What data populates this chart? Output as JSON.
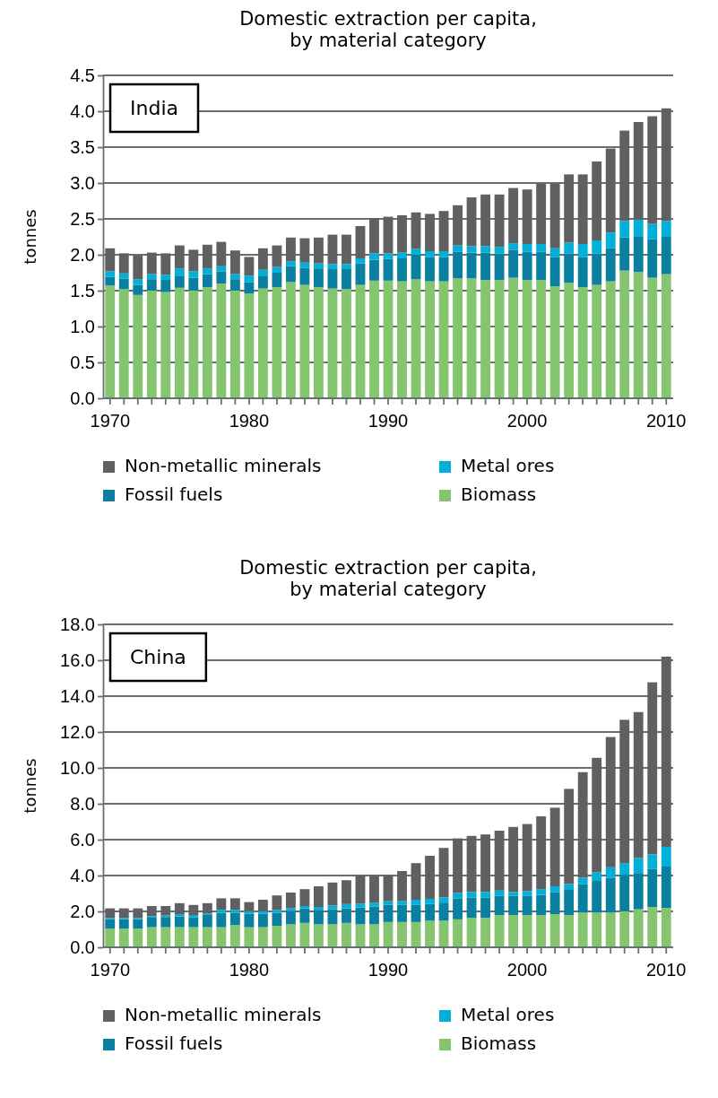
{
  "chart_data": [
    {
      "type": "bar",
      "stacked": true,
      "title": "Domestic extraction  per capita,\nby material category",
      "ylabel": "tonnes",
      "annotations": [
        "India"
      ],
      "grid": "y",
      "legend": "bottom",
      "categories": [
        "1970",
        null,
        null,
        null,
        null,
        null,
        null,
        null,
        null,
        null,
        "1980",
        null,
        null,
        null,
        null,
        null,
        null,
        null,
        null,
        null,
        "1990",
        null,
        null,
        null,
        null,
        null,
        null,
        null,
        null,
        null,
        "2000",
        null,
        null,
        null,
        null,
        null,
        null,
        null,
        null,
        null,
        "2010"
      ],
      "ylim": [
        0,
        4.5
      ],
      "yticks": [
        {
          "value": 0,
          "label": "0.0"
        },
        {
          "value": 0.5,
          "label": "0.5"
        },
        {
          "value": 1,
          "label": "1.0"
        },
        {
          "value": 1.5,
          "label": "1.5"
        },
        {
          "value": 2,
          "label": "2.0"
        },
        {
          "value": 2.5,
          "label": "2.5"
        },
        {
          "value": 3,
          "label": "3.0"
        },
        {
          "value": 3.5,
          "label": "3.5"
        },
        {
          "value": 4,
          "label": "4.0"
        },
        {
          "value": 4.5,
          "label": "4.5"
        }
      ],
      "series": [
        {
          "name": "Biomass",
          "color": "#86c56f",
          "values": [
            1.57,
            1.52,
            1.44,
            1.5,
            1.48,
            1.54,
            1.5,
            1.55,
            1.6,
            1.5,
            1.46,
            1.53,
            1.55,
            1.62,
            1.58,
            1.55,
            1.53,
            1.52,
            1.58,
            1.64,
            1.64,
            1.63,
            1.66,
            1.63,
            1.63,
            1.67,
            1.67,
            1.65,
            1.65,
            1.68,
            1.65,
            1.65,
            1.56,
            1.61,
            1.55,
            1.58,
            1.63,
            1.78,
            1.76,
            1.68,
            1.73
          ]
        },
        {
          "name": "Fossil fuels",
          "color": "#0a7fa0",
          "values": [
            0.12,
            0.15,
            0.14,
            0.16,
            0.17,
            0.17,
            0.18,
            0.18,
            0.17,
            0.16,
            0.16,
            0.18,
            0.2,
            0.22,
            0.24,
            0.26,
            0.27,
            0.28,
            0.3,
            0.29,
            0.3,
            0.32,
            0.34,
            0.34,
            0.34,
            0.37,
            0.36,
            0.38,
            0.37,
            0.39,
            0.39,
            0.39,
            0.41,
            0.41,
            0.42,
            0.44,
            0.46,
            0.46,
            0.5,
            0.54,
            0.52
          ]
        },
        {
          "name": "Metal ores",
          "color": "#00b0d8",
          "values": [
            0.08,
            0.07,
            0.08,
            0.07,
            0.07,
            0.1,
            0.09,
            0.08,
            0.07,
            0.07,
            0.09,
            0.08,
            0.08,
            0.07,
            0.07,
            0.07,
            0.07,
            0.07,
            0.07,
            0.09,
            0.08,
            0.08,
            0.08,
            0.08,
            0.08,
            0.09,
            0.09,
            0.09,
            0.09,
            0.09,
            0.11,
            0.11,
            0.12,
            0.15,
            0.18,
            0.18,
            0.22,
            0.23,
            0.23,
            0.21,
            0.22
          ]
        },
        {
          "name": "Non-metallic minerals",
          "color": "#5f6062",
          "values": [
            0.32,
            0.28,
            0.33,
            0.3,
            0.3,
            0.32,
            0.3,
            0.33,
            0.34,
            0.33,
            0.26,
            0.3,
            0.3,
            0.33,
            0.34,
            0.36,
            0.41,
            0.41,
            0.45,
            0.49,
            0.51,
            0.52,
            0.51,
            0.52,
            0.56,
            0.56,
            0.68,
            0.72,
            0.73,
            0.77,
            0.76,
            0.84,
            0.9,
            0.95,
            0.97,
            1.1,
            1.17,
            1.26,
            1.36,
            1.5,
            1.57
          ]
        }
      ]
    },
    {
      "type": "bar",
      "stacked": true,
      "title": "Domestic extraction  per capita,\nby material category",
      "ylabel": "tonnes",
      "annotations": [
        "China"
      ],
      "grid": "y",
      "legend": "bottom",
      "categories": [
        "1970",
        null,
        null,
        null,
        null,
        null,
        null,
        null,
        null,
        null,
        "1980",
        null,
        null,
        null,
        null,
        null,
        null,
        null,
        null,
        null,
        "1990",
        null,
        null,
        null,
        null,
        null,
        null,
        null,
        null,
        null,
        "2000",
        null,
        null,
        null,
        null,
        null,
        null,
        null,
        null,
        null,
        "2010"
      ],
      "ylim": [
        0,
        18
      ],
      "yticks": [
        {
          "value": 0,
          "label": "0.0"
        },
        {
          "value": 2,
          "label": "2.0"
        },
        {
          "value": 4,
          "label": "4.0"
        },
        {
          "value": 6,
          "label": "6.0"
        },
        {
          "value": 8,
          "label": "8.0"
        },
        {
          "value": 10,
          "label": "10.0"
        },
        {
          "value": 12,
          "label": "12.0"
        },
        {
          "value": 14,
          "label": "14.0"
        },
        {
          "value": 16,
          "label": "16.0"
        },
        {
          "value": 18,
          "label": "18.0"
        }
      ],
      "series": [
        {
          "name": "Biomass",
          "color": "#86c56f",
          "values": [
            1.04,
            1.04,
            1.04,
            1.12,
            1.12,
            1.12,
            1.12,
            1.12,
            1.12,
            1.24,
            1.12,
            1.12,
            1.2,
            1.28,
            1.36,
            1.28,
            1.28,
            1.36,
            1.28,
            1.28,
            1.41,
            1.41,
            1.41,
            1.48,
            1.48,
            1.56,
            1.64,
            1.64,
            1.8,
            1.8,
            1.8,
            1.8,
            1.85,
            1.8,
            1.93,
            1.93,
            1.93,
            2.01,
            2.12,
            2.25,
            2.2
          ]
        },
        {
          "name": "Fossil fuels",
          "color": "#0a7fa0",
          "values": [
            0.53,
            0.53,
            0.53,
            0.53,
            0.57,
            0.6,
            0.56,
            0.68,
            0.81,
            0.69,
            0.76,
            0.76,
            0.73,
            0.73,
            0.81,
            0.81,
            0.85,
            0.81,
            0.94,
            1.0,
            0.95,
            0.95,
            0.95,
            0.93,
            1.01,
            1.17,
            1.14,
            1.14,
            1.06,
            1.06,
            1.06,
            1.12,
            1.23,
            1.44,
            1.6,
            1.81,
            1.95,
            2.03,
            2.02,
            2.13,
            2.3
          ]
        },
        {
          "name": "Metal ores",
          "color": "#00b0d8",
          "values": [
            0.07,
            0.07,
            0.07,
            0.08,
            0.08,
            0.13,
            0.12,
            0.08,
            0.16,
            0.16,
            0.13,
            0.13,
            0.16,
            0.16,
            0.13,
            0.16,
            0.2,
            0.24,
            0.22,
            0.21,
            0.21,
            0.21,
            0.29,
            0.29,
            0.29,
            0.29,
            0.3,
            0.3,
            0.3,
            0.22,
            0.27,
            0.32,
            0.32,
            0.29,
            0.35,
            0.43,
            0.58,
            0.65,
            0.84,
            0.8,
            1.1
          ]
        },
        {
          "name": "Non-metallic minerals",
          "color": "#5f6062",
          "values": [
            0.53,
            0.53,
            0.53,
            0.57,
            0.53,
            0.61,
            0.56,
            0.58,
            0.64,
            0.64,
            0.51,
            0.64,
            0.8,
            0.88,
            0.94,
            1.15,
            1.28,
            1.33,
            1.57,
            1.52,
            1.44,
            1.68,
            2.04,
            2.4,
            2.76,
            3.05,
            3.13,
            3.21,
            3.34,
            3.63,
            3.74,
            4.06,
            4.38,
            5.3,
            5.88,
            6.39,
            7.26,
            7.99,
            8.13,
            9.59,
            10.6
          ]
        }
      ]
    }
  ]
}
